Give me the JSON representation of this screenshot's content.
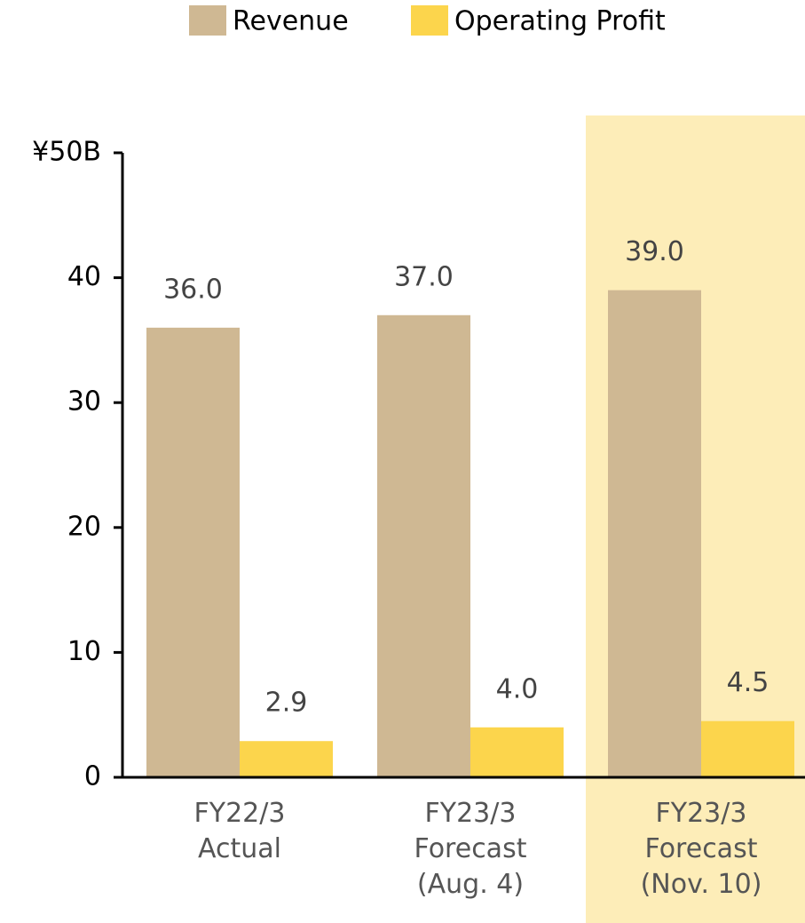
{
  "chart_data": {
    "type": "bar",
    "categories": [
      "FY22/3\nActual",
      "FY23/3\nForecast\n(Aug. 4)",
      "FY23/3\nForecast\n(Nov. 10)"
    ],
    "series": [
      {
        "name": "Revenue",
        "color": "#cfb893",
        "values": [
          36.0,
          37.0,
          39.0
        ],
        "value_labels": [
          "36.0",
          "37.0",
          "39.0"
        ]
      },
      {
        "name": "Operating Profit",
        "color": "#fcd54c",
        "values": [
          2.9,
          4.0,
          4.5
        ],
        "value_labels": [
          "2.9",
          "4.0",
          "4.5"
        ]
      }
    ],
    "ylim": [
      0,
      50
    ],
    "yticks": [
      0,
      10,
      20,
      30,
      40,
      {
        "value": 50,
        "label": "¥50B"
      }
    ],
    "legend": "top",
    "highlight_index": 2,
    "highlight_color": "#fdedb8"
  }
}
